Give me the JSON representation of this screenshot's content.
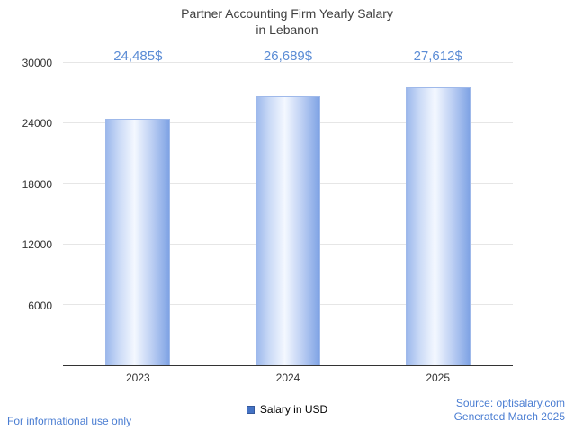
{
  "chart_data": {
    "type": "bar",
    "title": "Partner Accounting Firm Yearly Salary in Lebanon",
    "title_lines": [
      "Partner Accounting Firm Yearly Salary",
      "in Lebanon"
    ],
    "categories": [
      "2023",
      "2024",
      "2025"
    ],
    "values": [
      24485,
      26689,
      27612
    ],
    "value_labels": [
      "24,485$",
      "26,689$",
      "27,612$"
    ],
    "series_name": "Salary in USD",
    "xlabel": "",
    "ylabel": "",
    "ylim": [
      0,
      30000
    ],
    "yticks": [
      6000,
      12000,
      18000,
      24000,
      30000
    ],
    "grid": true,
    "legend_position": "bottom"
  },
  "legend": {
    "label": "Salary in USD",
    "swatch_color": "#4472c4"
  },
  "footer": {
    "left_note": "For informational use only",
    "source": "Source: optisalary.com",
    "generated": "Generated March 2025"
  },
  "colors": {
    "value_label": "#5b8cd5",
    "footer_blue": "#4a7dd2",
    "title": "#3f3f3f",
    "axis": "#333333",
    "gridline": "#e6e6e6",
    "bar_edge_left": "#9cb8ec",
    "bar_mid": "#f4f8ff",
    "bar_edge_right": "#7fa3e4"
  }
}
